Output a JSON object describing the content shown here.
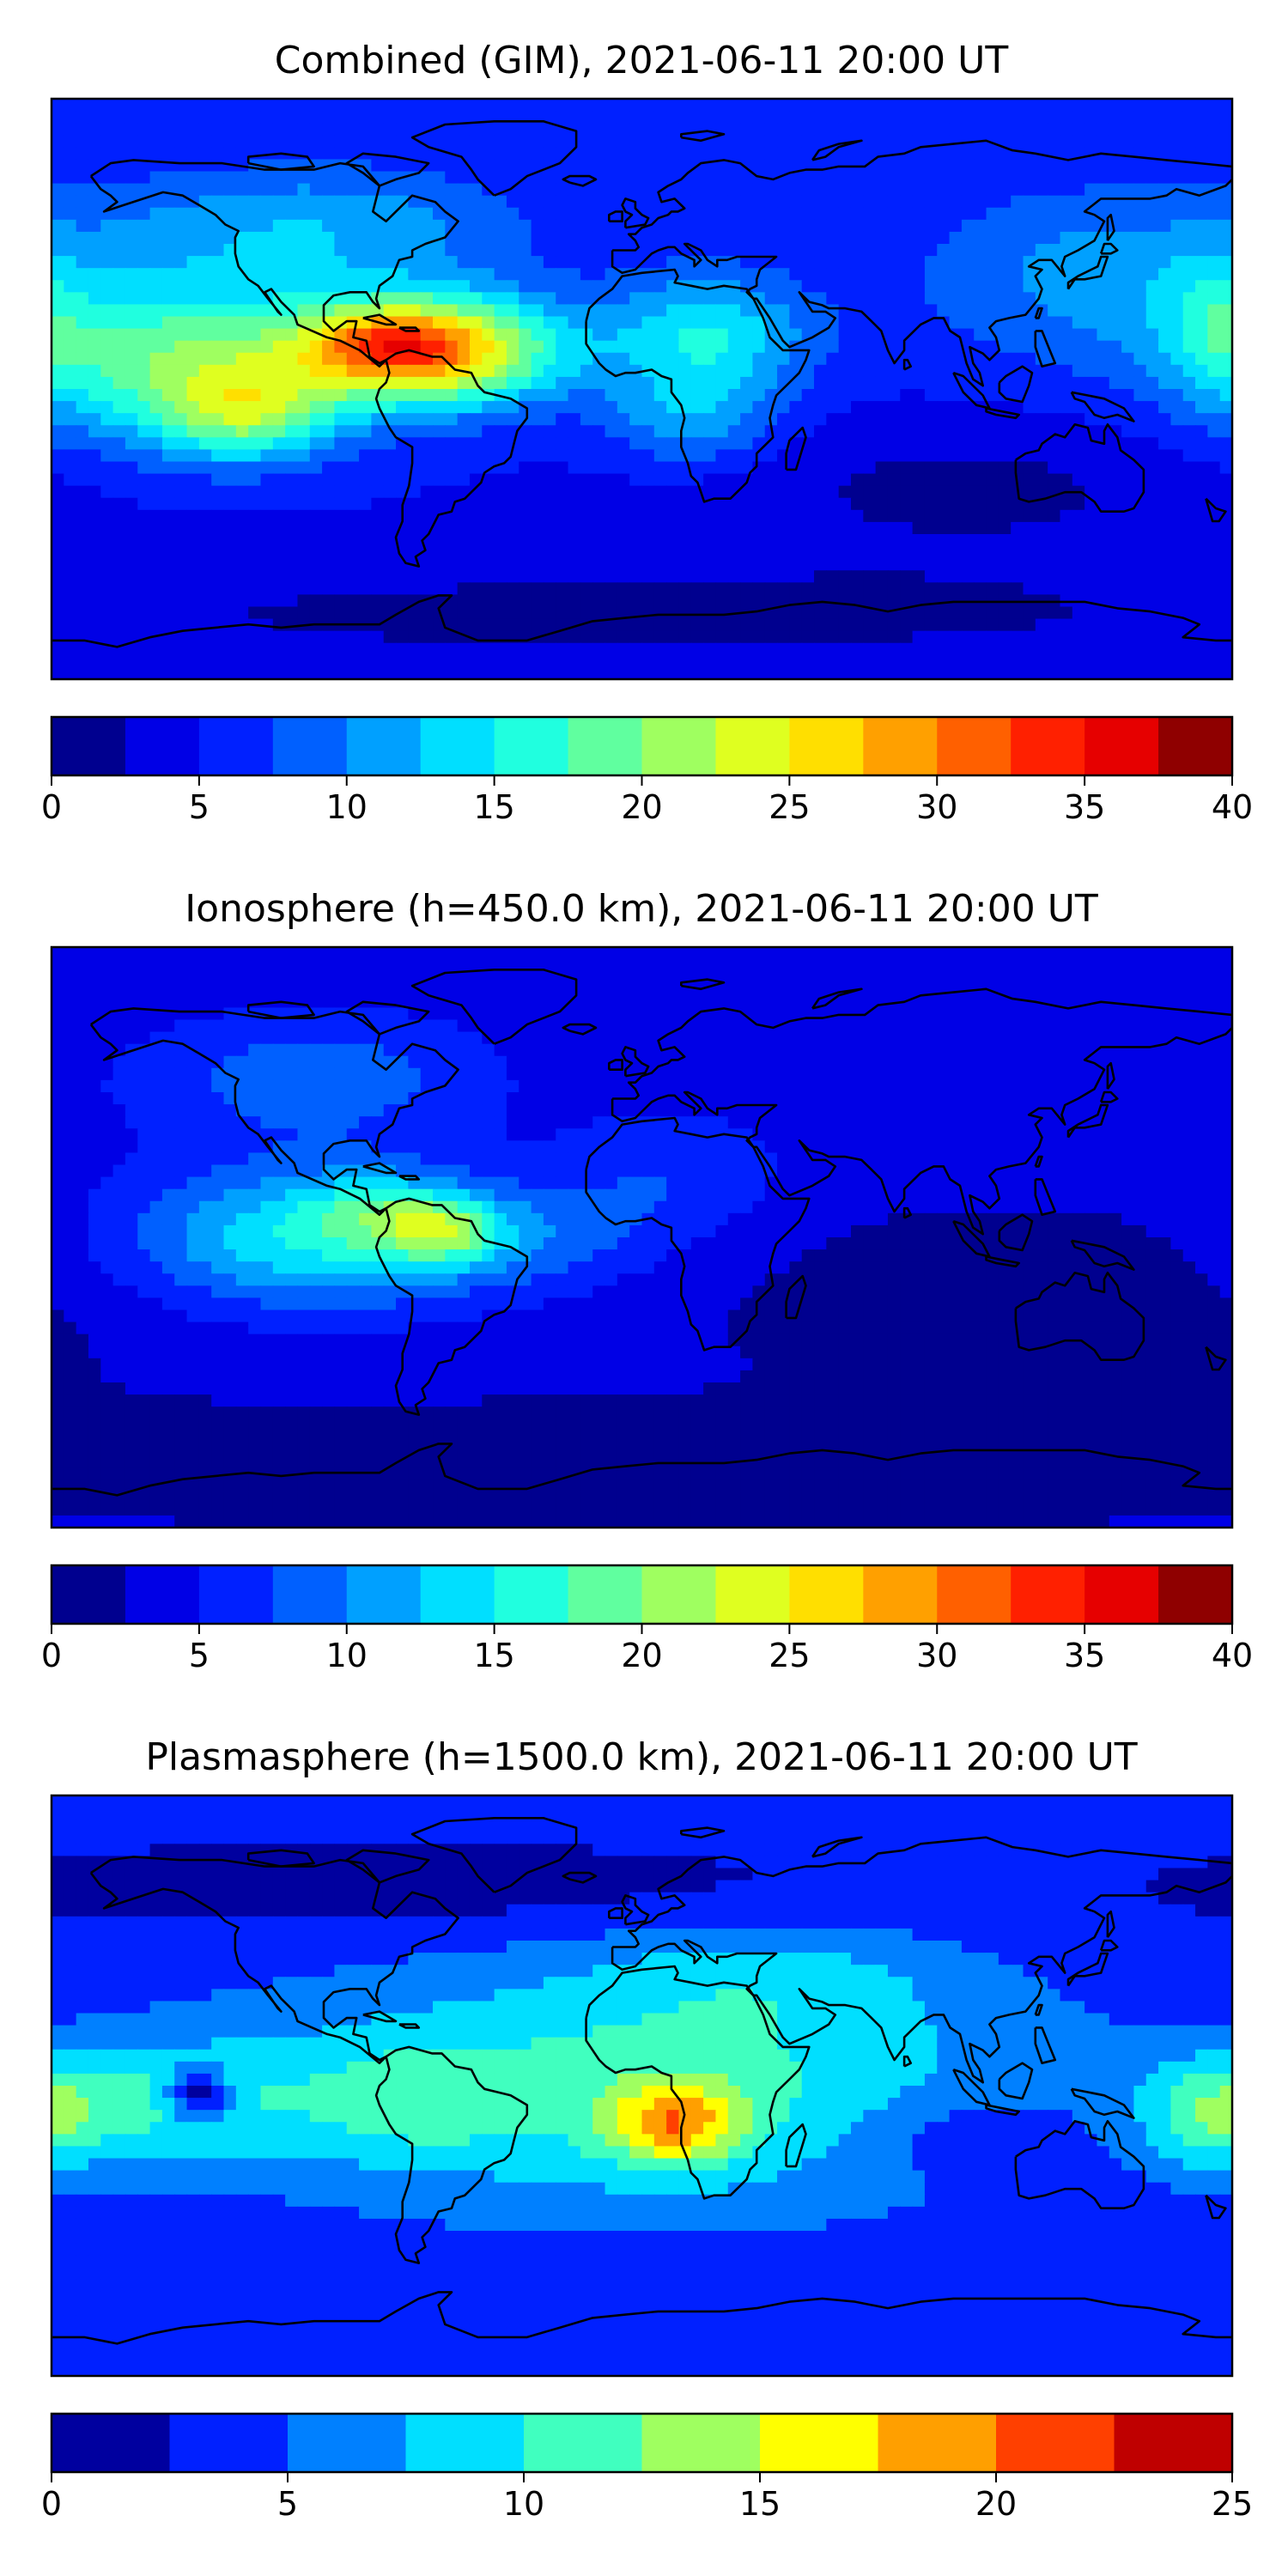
{
  "panels": [
    {
      "title": "Combined (GIM), 2021-06-11 20:00 UT",
      "colorbar": {
        "min": 0,
        "max": 40,
        "step": 2.5,
        "ticks": [
          "0",
          "5",
          "10",
          "15",
          "20",
          "25",
          "30",
          "35",
          "40"
        ],
        "colors": [
          "#00008f",
          "#0000e6",
          "#0020ff",
          "#0060ff",
          "#00a0ff",
          "#00dfff",
          "#20ffdf",
          "#60ff9f",
          "#9fff60",
          "#dfff20",
          "#ffdf00",
          "#ffa000",
          "#ff6000",
          "#ff2000",
          "#e60000",
          "#8f0000"
        ]
      },
      "field": {
        "background": 5,
        "blobs": [
          {
            "lon": -65,
            "lat": 12,
            "sx": 28,
            "sy": 12,
            "amp": 24
          },
          {
            "lon": -80,
            "lat": 14,
            "sx": 14,
            "sy": 7,
            "amp": 6
          },
          {
            "lon": -140,
            "lat": 8,
            "sx": 35,
            "sy": 18,
            "amp": 14
          },
          {
            "lon": -120,
            "lat": -8,
            "sx": 18,
            "sy": 10,
            "amp": 10
          },
          {
            "lon": -100,
            "lat": 50,
            "sx": 45,
            "sy": 14,
            "amp": 7
          },
          {
            "lon": 20,
            "lat": 16,
            "sx": 22,
            "sy": 14,
            "amp": 10
          },
          {
            "lon": 15,
            "lat": -10,
            "sx": 18,
            "sy": 10,
            "amp": 6
          },
          {
            "lon": 140,
            "lat": 35,
            "sx": 40,
            "sy": 20,
            "amp": 6
          },
          {
            "lon": 175,
            "lat": 20,
            "sx": 12,
            "sy": 15,
            "amp": 5
          },
          {
            "lon": 100,
            "lat": -30,
            "sx": 60,
            "sy": 15,
            "amp": -3
          },
          {
            "lon": 0,
            "lat": -70,
            "sx": 200,
            "sy": 15,
            "amp": -3
          }
        ]
      }
    },
    {
      "title": "Ionosphere  (h=450.0 km), 2021-06-11 20:00 UT",
      "colorbar": {
        "min": 0,
        "max": 40,
        "step": 2.5,
        "ticks": [
          "0",
          "5",
          "10",
          "15",
          "20",
          "25",
          "30",
          "35",
          "40"
        ],
        "colors": [
          "#00008f",
          "#0000e6",
          "#0020ff",
          "#0060ff",
          "#00a0ff",
          "#00dfff",
          "#20ffdf",
          "#60ff9f",
          "#9fff60",
          "#dfff20",
          "#ffdf00",
          "#ffa000",
          "#ff6000",
          "#ff2000",
          "#e60000",
          "#8f0000"
        ]
      },
      "field": {
        "background": 3,
        "blobs": [
          {
            "lon": -100,
            "lat": 0,
            "sx": 40,
            "sy": 16,
            "amp": 12
          },
          {
            "lon": -60,
            "lat": 2,
            "sx": 12,
            "sy": 7,
            "amp": 10
          },
          {
            "lon": -80,
            "lat": 8,
            "sx": 15,
            "sy": 8,
            "amp": 6
          },
          {
            "lon": -100,
            "lat": 50,
            "sx": 40,
            "sy": 15,
            "amp": 6
          },
          {
            "lon": -30,
            "lat": 0,
            "sx": 25,
            "sy": 12,
            "amp": 4
          },
          {
            "lon": 10,
            "lat": 20,
            "sx": 25,
            "sy": 15,
            "amp": 4
          },
          {
            "lon": 120,
            "lat": 40,
            "sx": 40,
            "sy": 15,
            "amp": 2
          },
          {
            "lon": 120,
            "lat": -20,
            "sx": 60,
            "sy": 20,
            "amp": -2
          },
          {
            "lon": 0,
            "lat": -70,
            "sx": 200,
            "sy": 12,
            "amp": -2
          }
        ]
      }
    },
    {
      "title": "Plasmasphere (h=1500.0 km), 2021-06-11 20:00 UT",
      "colorbar": {
        "min": 0,
        "max": 25,
        "step": 2.5,
        "ticks": [
          "0",
          "5",
          "10",
          "15",
          "20",
          "25"
        ],
        "colors": [
          "#00009f",
          "#0020ff",
          "#0080ff",
          "#00dfff",
          "#40ffbf",
          "#9fff60",
          "#ffff00",
          "#ff9f00",
          "#ff4000",
          "#bf0000"
        ]
      },
      "field": {
        "background": 3,
        "blobs": [
          {
            "lon": 0,
            "lat": 0,
            "sx": 90,
            "sy": 28,
            "amp": 8
          },
          {
            "lon": 10,
            "lat": -12,
            "sx": 14,
            "sy": 9,
            "amp": 10
          },
          {
            "lon": -150,
            "lat": -5,
            "sx": 35,
            "sy": 14,
            "amp": 6
          },
          {
            "lon": -135,
            "lat": -3,
            "sx": 7,
            "sy": 6,
            "amp": -9
          },
          {
            "lon": -70,
            "lat": -5,
            "sx": 20,
            "sy": 12,
            "amp": 3
          },
          {
            "lon": 175,
            "lat": -10,
            "sx": 15,
            "sy": 12,
            "amp": 6
          },
          {
            "lon": 40,
            "lat": 35,
            "sx": 40,
            "sy": 12,
            "amp": 3
          },
          {
            "lon": -60,
            "lat": 60,
            "sx": 100,
            "sy": 10,
            "amp": -2
          },
          {
            "lon": 100,
            "lat": -15,
            "sx": 25,
            "sy": 10,
            "amp": -3
          }
        ]
      }
    }
  ]
}
